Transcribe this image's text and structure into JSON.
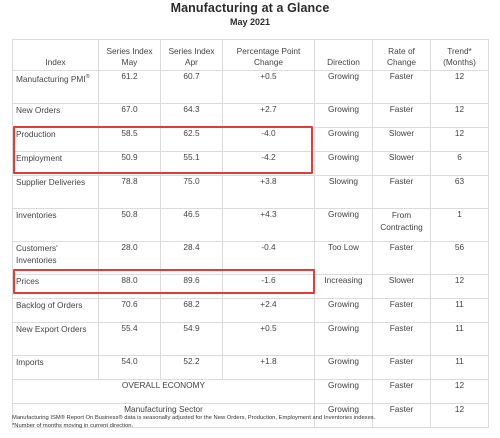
{
  "title": "Manufacturing at a Glance",
  "subtitle": "May 2021",
  "headers": [
    "Index",
    "Series Index May",
    "Series Index Apr",
    "Percentage Point Change",
    "Direction",
    "Rate of Change",
    "Trend* (Months)"
  ],
  "headers_lines": [
    [
      "Index"
    ],
    [
      "Series Index",
      "May"
    ],
    [
      "Series Index",
      "Apr"
    ],
    [
      "Percentage Point",
      "Change"
    ],
    [
      "Direction"
    ],
    [
      "Rate of",
      "Change"
    ],
    [
      "Trend*",
      "(Months)"
    ]
  ],
  "rows": [
    {
      "index": "Manufacturing PMI",
      "index_sup": "®",
      "may": "61.2",
      "apr": "60.7",
      "change": "+0.5",
      "direction": "Growing",
      "rate": "Faster",
      "trend": "12"
    },
    {
      "index": "New Orders",
      "may": "67.0",
      "apr": "64.3",
      "change": "+2.7",
      "direction": "Growing",
      "rate": "Faster",
      "trend": "12"
    },
    {
      "index": "Production",
      "may": "58.5",
      "apr": "62.5",
      "change": "-4.0",
      "direction": "Growing",
      "rate": "Slower",
      "trend": "12"
    },
    {
      "index": "Employment",
      "may": "50.9",
      "apr": "55.1",
      "change": "-4.2",
      "direction": "Growing",
      "rate": "Slower",
      "trend": "6"
    },
    {
      "index": "Supplier Deliveries",
      "may": "78.8",
      "apr": "75.0",
      "change": "+3.8",
      "direction": "Slowing",
      "rate": "Faster",
      "trend": "63"
    },
    {
      "index": "Inventories",
      "may": "50.8",
      "apr": "46.5",
      "change": "+4.3",
      "direction": "Growing",
      "rate": "From Contracting",
      "trend": "1"
    },
    {
      "index": "Customers' Inventories",
      "may": "28.0",
      "apr": "28.4",
      "change": "-0.4",
      "direction": "Too Low",
      "rate": "Faster",
      "trend": "56"
    },
    {
      "index": "Prices",
      "may": "88.0",
      "apr": "89.6",
      "change": "-1.6",
      "direction": "Increasing",
      "rate": "Slower",
      "trend": "12"
    },
    {
      "index": "Backlog of Orders",
      "may": "70.6",
      "apr": "68.2",
      "change": "+2.4",
      "direction": "Growing",
      "rate": "Faster",
      "trend": "11"
    },
    {
      "index": "New Export Orders",
      "may": "55.4",
      "apr": "54.9",
      "change": "+0.5",
      "direction": "Growing",
      "rate": "Faster",
      "trend": "11"
    },
    {
      "index": "Imports",
      "may": "54.0",
      "apr": "52.2",
      "change": "+1.8",
      "direction": "Growing",
      "rate": "Faster",
      "trend": "11"
    }
  ],
  "summary_rows": [
    {
      "label": "OVERALL ECONOMY",
      "direction": "Growing",
      "rate": "Faster",
      "trend": "12"
    },
    {
      "label": "Manufacturing Sector",
      "direction": "Growing",
      "rate": "Faster",
      "trend": "12"
    }
  ],
  "footnotes": [
    "Manufacturing ISM® Report On Business® data is seasonally adjusted for the New Orders, Production, Employment and Inventories indexes.",
    "*Number of months moving in current direction."
  ],
  "highlight_color": "#e23b3b"
}
